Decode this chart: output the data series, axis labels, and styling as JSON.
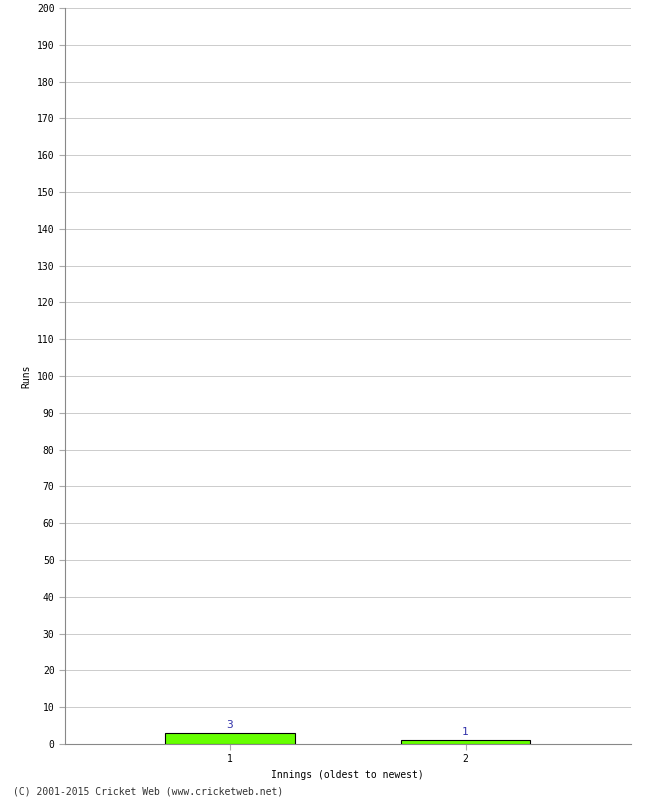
{
  "xlabel": "Innings (oldest to newest)",
  "ylabel": "Runs",
  "bar_values": [
    3,
    1
  ],
  "bar_positions": [
    1,
    2
  ],
  "bar_color": "#66ff00",
  "bar_edge_color": "#000000",
  "value_labels": [
    "3",
    "1"
  ],
  "value_label_color": "#3333aa",
  "x_tick_labels": [
    "1",
    "2"
  ],
  "ylim": [
    0,
    200
  ],
  "ytick_interval": 10,
  "background_color": "#ffffff",
  "grid_color": "#cccccc",
  "footer": "(C) 2001-2015 Cricket Web (www.cricketweb.net)",
  "bar_width": 0.55
}
